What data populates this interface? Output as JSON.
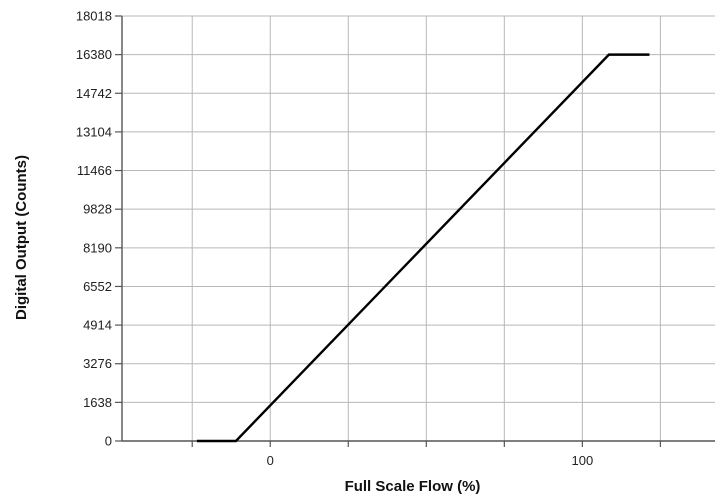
{
  "chart_data": {
    "type": "line",
    "xlabel": "Full Scale Flow (%)",
    "ylabel": "Digital Output (Counts)",
    "x_ticks": [
      0,
      100
    ],
    "y_ticks": [
      0,
      1638,
      3276,
      4914,
      6552,
      8190,
      9828,
      11466,
      13104,
      14742,
      16380,
      18018
    ],
    "xlim": [
      -47.5,
      142.5
    ],
    "ylim": [
      0,
      18018
    ],
    "grid": true,
    "series": [
      {
        "color": "#000000",
        "x": [
          -23.5,
          -11,
          108.5,
          121.5
        ],
        "y": [
          0,
          0,
          16380,
          16380
        ]
      }
    ]
  }
}
